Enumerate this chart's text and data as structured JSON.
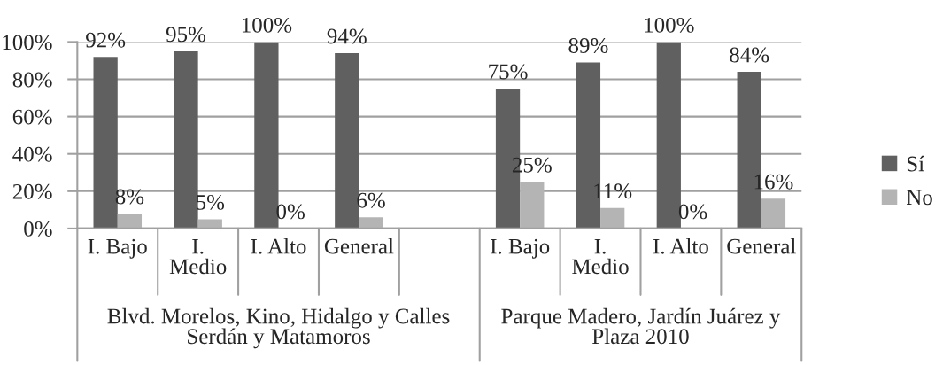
{
  "chart_data": {
    "type": "bar",
    "categories": [
      "I. Bajo",
      "I.\nMedio",
      "I. Alto",
      "General",
      null,
      "I. Bajo",
      "I.\nMedio",
      "I. Alto",
      "General"
    ],
    "series": [
      {
        "name": "Sí",
        "color": "#606060",
        "values": [
          92,
          95,
          100,
          94,
          null,
          75,
          89,
          100,
          84
        ],
        "value_labels": [
          "92%",
          "95%",
          "100%",
          "94%",
          null,
          "75%",
          "89%",
          "100%",
          "84%"
        ]
      },
      {
        "name": "No",
        "color": "#b4b4b4",
        "values": [
          8,
          5,
          0,
          6,
          null,
          25,
          11,
          0,
          16
        ],
        "value_labels": [
          "8%",
          "5%",
          "0%",
          "6%",
          null,
          "25%",
          "11%",
          "0%",
          "16%"
        ]
      }
    ],
    "ylim": [
      0,
      100
    ],
    "yticks": [
      {
        "value": 0,
        "label": "0%"
      },
      {
        "value": 20,
        "label": "20%"
      },
      {
        "value": 40,
        "label": "40%"
      },
      {
        "value": 60,
        "label": "60%"
      },
      {
        "value": 80,
        "label": "80%"
      },
      {
        "value": 100,
        "label": "100%"
      }
    ],
    "grid": "y",
    "legend": "right",
    "annotations": [
      "Blvd. Morelos, Kino, Hidalgo y Calles\nSerdán y Matamoros",
      "Parque Madero, Jardín Juárez y\nPlaza 2010"
    ]
  }
}
